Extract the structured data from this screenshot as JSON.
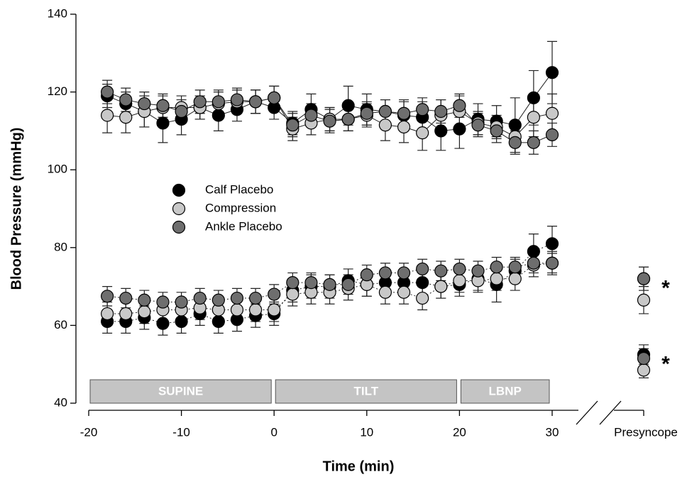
{
  "chart_data": {
    "type": "line",
    "xlabel": "Time (min)",
    "ylabel": "Blood Pressure (mmHg)",
    "x": [
      -18,
      -16,
      -14,
      -12,
      -10,
      -8,
      -6,
      -4,
      -2,
      0,
      2,
      4,
      6,
      8,
      10,
      12,
      14,
      16,
      18,
      20,
      22,
      24,
      26,
      28,
      30
    ],
    "xlim": [
      -20,
      30
    ],
    "ylim": [
      40,
      140
    ],
    "xticks": [
      -20,
      -10,
      0,
      10,
      20,
      30
    ],
    "yticks": [
      40,
      60,
      80,
      100,
      120,
      140
    ],
    "presyncope_label": "Presyncope",
    "phases": [
      {
        "label": "SUPINE",
        "start": -20,
        "end": 0
      },
      {
        "label": "TILT",
        "start": 0,
        "end": 20
      },
      {
        "label": "LBNP",
        "start": 20,
        "end": 30
      }
    ],
    "annotations": [
      "*",
      "*"
    ],
    "series": [
      {
        "name": "Calf Placebo",
        "color": "#000000",
        "systolic": [
          119,
          117,
          115,
          112,
          113,
          116,
          114,
          115.5,
          117.5,
          116,
          112,
          115.5,
          113,
          116.5,
          115.5,
          115,
          114,
          113.5,
          110,
          110.5,
          113,
          112.5,
          111.5,
          118.5,
          125
        ],
        "systolic_err": [
          3,
          3,
          4,
          5,
          4,
          3,
          4,
          3,
          3,
          3,
          3,
          4,
          3,
          5,
          4,
          3,
          4,
          4,
          5,
          5,
          4,
          4,
          7,
          7,
          8
        ],
        "diastolic": [
          61,
          61,
          62,
          60.5,
          61,
          63,
          61,
          61.5,
          62.5,
          63,
          69,
          70,
          70,
          71.5,
          70.5,
          71,
          71,
          71,
          70,
          70.5,
          72,
          70.5,
          74,
          79,
          81
        ],
        "diastolic_err": [
          3,
          3,
          3,
          3,
          3,
          3,
          3,
          3,
          3,
          3,
          3,
          3,
          3,
          3,
          3,
          3,
          3,
          3,
          3,
          3,
          3,
          4.5,
          3,
          4.5,
          4.5
        ],
        "presyncope": [
          72,
          52.5
        ],
        "presyncope_err": [
          3,
          2.5
        ]
      },
      {
        "name": "Compression",
        "color": "#c8c8c8",
        "systolic": [
          114,
          113.5,
          115,
          116,
          116,
          116,
          117,
          117.5,
          117.5,
          118.5,
          110.5,
          112,
          113,
          113,
          114,
          111.5,
          111,
          109.5,
          114,
          115,
          112,
          111,
          108.5,
          113.5,
          114.5
        ],
        "systolic_err": [
          4.5,
          4,
          4,
          3,
          3,
          3,
          3,
          3,
          3,
          3,
          3,
          3,
          3,
          3,
          3,
          4,
          4,
          4.5,
          4,
          4,
          3,
          3,
          4,
          5,
          5
        ],
        "diastolic": [
          63,
          63,
          63.5,
          64,
          64,
          64.5,
          64,
          64,
          64,
          64,
          68,
          68.5,
          68.5,
          69.5,
          70.5,
          68.5,
          68.5,
          67,
          70,
          71.5,
          71.5,
          72,
          72,
          75.5,
          76
        ],
        "diastolic_err": [
          3,
          3,
          3,
          3,
          3,
          3,
          3,
          3,
          3,
          3,
          3,
          3,
          3,
          3,
          3,
          3,
          3,
          3,
          3,
          3,
          3,
          3,
          3,
          3,
          3
        ],
        "presyncope": [
          66.5,
          48.5
        ],
        "presyncope_err": [
          3.5,
          2
        ]
      },
      {
        "name": "Ankle Placebo",
        "color": "#6e6e6e",
        "systolic": [
          120,
          118,
          117,
          116.5,
          115,
          117.5,
          117.5,
          118,
          117.5,
          118.5,
          111.5,
          114,
          112.5,
          113,
          114.5,
          115,
          114.5,
          115.5,
          115,
          116.5,
          111.5,
          110,
          107,
          107,
          109
        ],
        "systolic_err": [
          3,
          3,
          3,
          3,
          3,
          3,
          3,
          3,
          3,
          3,
          3,
          3,
          3,
          3,
          3,
          3,
          3,
          3,
          3,
          3,
          3,
          3,
          3,
          3,
          3
        ],
        "diastolic": [
          67.5,
          67,
          66.5,
          66,
          66,
          67,
          66.5,
          67,
          67,
          68,
          71,
          71,
          70.5,
          70.5,
          73,
          73.5,
          73.5,
          74.5,
          74,
          74.5,
          74,
          75,
          75,
          76,
          76
        ],
        "diastolic_err": [
          2.5,
          2.5,
          2.5,
          2.5,
          2.5,
          2.5,
          2.5,
          2.5,
          2.5,
          2.5,
          2.5,
          2.5,
          2.5,
          2.5,
          2.5,
          2.5,
          2.5,
          2.5,
          2.5,
          2.5,
          2.5,
          2.5,
          2.5,
          2.5,
          2.5
        ],
        "presyncope": [
          72,
          51.5
        ],
        "presyncope_err": [
          3,
          2.5
        ]
      }
    ]
  }
}
